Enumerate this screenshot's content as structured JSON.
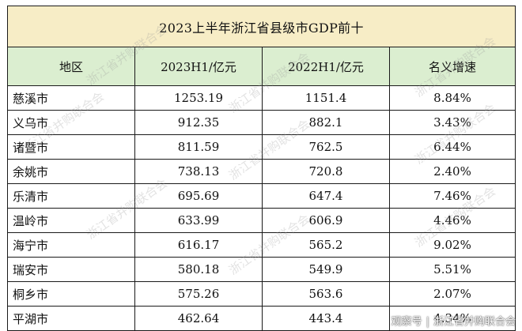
{
  "title": "2023上半年浙江省县级市GDP前十",
  "headers": [
    "地区",
    "2023H1/亿元",
    "2022H1/亿元",
    "名义增速"
  ],
  "rows": [
    {
      "region": "慈溪市",
      "h1_2023": "1253.19",
      "h1_2022": "1151.4",
      "growth": "8.84%"
    },
    {
      "region": "义乌市",
      "h1_2023": "912.35",
      "h1_2022": "882.1",
      "growth": "3.43%"
    },
    {
      "region": "诸暨市",
      "h1_2023": "811.59",
      "h1_2022": "762.5",
      "growth": "6.44%"
    },
    {
      "region": "余姚市",
      "h1_2023": "738.13",
      "h1_2022": "720.8",
      "growth": "2.40%"
    },
    {
      "region": "乐清市",
      "h1_2023": "695.69",
      "h1_2022": "647.4",
      "growth": "7.46%"
    },
    {
      "region": "温岭市",
      "h1_2023": "633.99",
      "h1_2022": "606.9",
      "growth": "4.46%"
    },
    {
      "region": "海宁市",
      "h1_2023": "616.17",
      "h1_2022": "565.2",
      "growth": "9.02%"
    },
    {
      "region": "瑞安市",
      "h1_2023": "580.18",
      "h1_2022": "549.9",
      "growth": "5.51%"
    },
    {
      "region": "桐乡市",
      "h1_2023": "575.26",
      "h1_2022": "563.6",
      "growth": "2.07%"
    },
    {
      "region": "平湖市",
      "h1_2023": "462.64",
      "h1_2022": "443.4",
      "growth": "4.34%"
    }
  ],
  "watermark_text": "浙江省并购联合会",
  "credit": {
    "platform": "观察号",
    "author": "浙江省并购联合会"
  }
}
